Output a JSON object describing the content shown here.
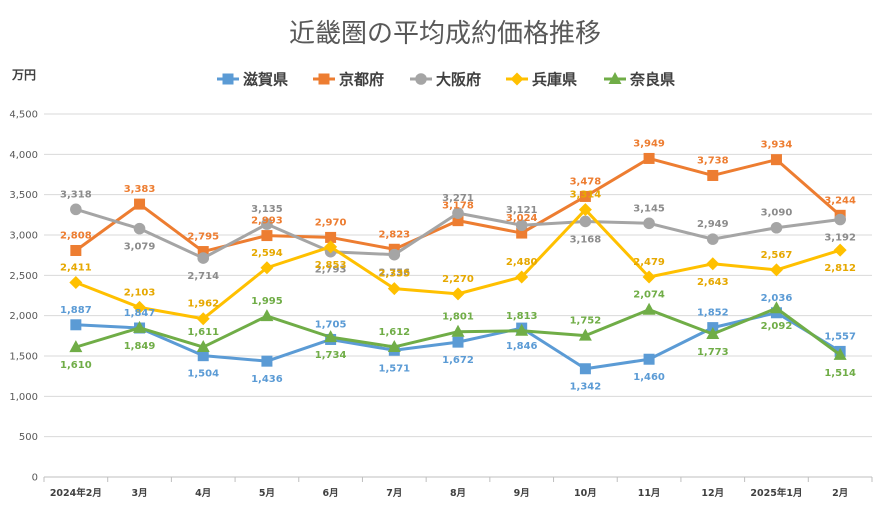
{
  "chart_data": {
    "type": "line",
    "title": "近畿圏の平均成約価格推移",
    "ylabel": "万円",
    "xlabel": "",
    "ylim": [
      0,
      4500
    ],
    "yticks": [
      0,
      500,
      1000,
      1500,
      2000,
      2500,
      3000,
      3500,
      4000,
      4500
    ],
    "ytick_labels": [
      "0",
      "500",
      "1,000",
      "1,500",
      "2,000",
      "2,500",
      "3,000",
      "3,500",
      "4,000",
      "4,500"
    ],
    "grid": true,
    "legend_position": "top",
    "categories": [
      "2024年2月",
      "3月",
      "4月",
      "5月",
      "6月",
      "7月",
      "8月",
      "9月",
      "10月",
      "11月",
      "12月",
      "2025年1月",
      "2月"
    ],
    "series": [
      {
        "name": "滋賀県",
        "color": "#5B9BD5",
        "marker": "square",
        "values": [
          1887,
          1847,
          1504,
          1436,
          1705,
          1571,
          1672,
          1846,
          1342,
          1460,
          1852,
          2036,
          1557
        ],
        "labels": [
          "1,887",
          "1,847",
          "1,504",
          "1,436",
          "1,705",
          "1,571",
          "1,672",
          "1,846",
          "1,342",
          "1,460",
          "1,852",
          "2,036",
          "1,557"
        ]
      },
      {
        "name": "京都府",
        "color": "#ED7D31",
        "marker": "square",
        "values": [
          2808,
          3383,
          2795,
          2993,
          2970,
          2823,
          3178,
          3024,
          3478,
          3949,
          3738,
          3934,
          3244
        ],
        "labels": [
          "2,808",
          "3,383",
          "2,795",
          "2,993",
          "2,970",
          "2,823",
          "3,178",
          "3,024",
          "3,478",
          "3,949",
          "3,738",
          "3,934",
          "3,244"
        ]
      },
      {
        "name": "大阪府",
        "color": "#A5A5A5",
        "marker": "circle",
        "values": [
          3318,
          3079,
          2714,
          3135,
          2793,
          2756,
          3271,
          3121,
          3168,
          3145,
          2949,
          3090,
          3192
        ],
        "labels": [
          "3,318",
          "3,079",
          "2,714",
          "3,135",
          "2,793",
          "2,756",
          "3,271",
          "3,121",
          "3,168",
          "3,145",
          "2,949",
          "3,090",
          "3,192"
        ]
      },
      {
        "name": "兵庫県",
        "color": "#FFC000",
        "marker": "diamond",
        "values": [
          2411,
          2103,
          1962,
          2594,
          2853,
          2335,
          2270,
          2480,
          3314,
          2479,
          2643,
          2567,
          2812
        ],
        "labels": [
          "2,411",
          "2,103",
          "1,962",
          "2,594",
          "2,853",
          "2,335",
          "2,270",
          "2,480",
          "3,314",
          "2,479",
          "2,643",
          "2,567",
          "2,812"
        ]
      },
      {
        "name": "奈良県",
        "color": "#70AD47",
        "marker": "triangle",
        "values": [
          1610,
          1849,
          1611,
          1995,
          1734,
          1612,
          1801,
          1813,
          1752,
          2074,
          1773,
          2092,
          1514
        ],
        "labels": [
          "1,610",
          "1,849",
          "1,611",
          "1,995",
          "1,734",
          "1,612",
          "1,801",
          "1,813",
          "1,752",
          "2,074",
          "1,773",
          "2,092",
          "1,514"
        ]
      }
    ]
  }
}
